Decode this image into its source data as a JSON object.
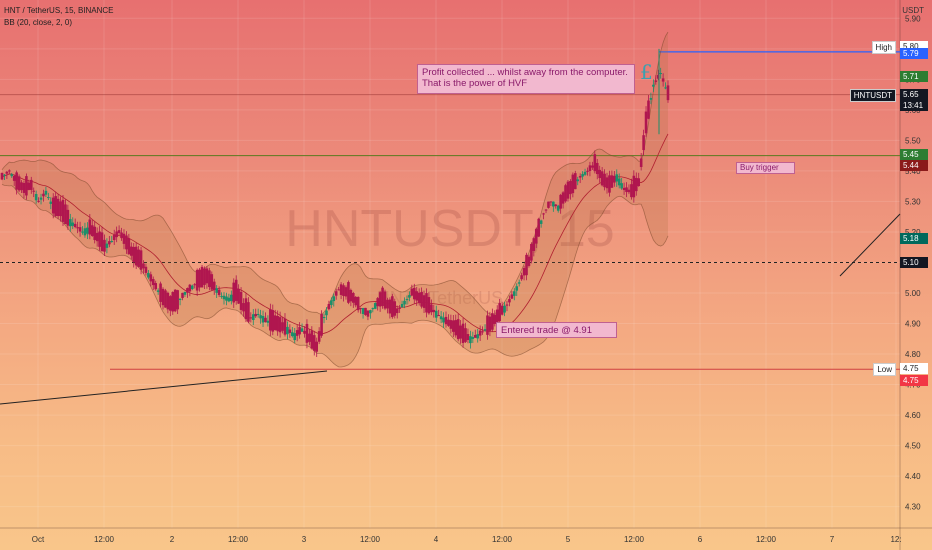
{
  "header": {
    "symbol_line": "HNT / TetherUS, 15, BINANCE",
    "indicator_line": "BB (20, close, 2, 0)",
    "currency": "USDT"
  },
  "watermark": {
    "ticker": "HNTUSDT, 15",
    "name": "HNT / TetherUS"
  },
  "y_axis": {
    "ticks": [
      "5.90",
      "5.80",
      "5.70",
      "5.60",
      "5.50",
      "5.40",
      "5.30",
      "5.20",
      "5.10",
      "5.00",
      "4.90",
      "4.80",
      "4.70",
      "4.60",
      "4.50",
      "4.40",
      "4.30"
    ],
    "min": 4.23,
    "max": 5.96
  },
  "x_axis": {
    "ticks": [
      "Oct",
      "12:00",
      "2",
      "12:00",
      "3",
      "12:00",
      "4",
      "12:00",
      "5",
      "12:00",
      "6",
      "12:00",
      "7",
      "12:"
    ]
  },
  "price_labels": [
    {
      "name": "high-label",
      "label": "High",
      "value": "5.80",
      "color": "#ffffff",
      "text": "#222222"
    },
    {
      "name": "blue-line-label",
      "label": "",
      "value": "5.79",
      "color": "#2962ff",
      "text": "#ffffff"
    },
    {
      "name": "bb-upper-label",
      "label": "",
      "value": "5.71",
      "color": "#2e7d32",
      "text": "#ffffff"
    },
    {
      "name": "last-price-label",
      "label": "HNTUSDT",
      "value": "5.65",
      "sub": "13:41",
      "color": "#131722",
      "text": "#ffffff"
    },
    {
      "name": "bb-basis-label",
      "label": "",
      "value": "5.45",
      "color": "#2e7d32",
      "text": "#ffffff"
    },
    {
      "name": "bb-mid-label",
      "label": "",
      "value": "5.44",
      "color": "#8b1a1a",
      "text": "#ffffff"
    },
    {
      "name": "bb-lower-label",
      "label": "",
      "value": "5.18",
      "color": "#00695c",
      "text": "#ffffff"
    },
    {
      "name": "dashed-line-label",
      "label": "",
      "value": "5.10",
      "color": "#131722",
      "text": "#ffffff"
    },
    {
      "name": "low-label",
      "label": "Low",
      "value": "4.75",
      "color": "#ffffff",
      "text": "#222222"
    },
    {
      "name": "red-level-label",
      "label": "",
      "value": "4.75",
      "color": "#f23645",
      "text": "#ffffff"
    }
  ],
  "annotations": {
    "profit_line1": "Profit collected ... whilst away from the computer.",
    "profit_line2": "That is the power of HVF",
    "buy_trigger": "Buy trigger",
    "entered_trade": "Entered trade @ 4.91",
    "pound_symbol": "£"
  },
  "chart_data": {
    "type": "candlestick",
    "title": "HNT / TetherUS, 15, BINANCE",
    "ylabel": "USDT",
    "ylim": [
      4.23,
      5.96
    ],
    "levels": {
      "high": 5.8,
      "blue_line": 5.79,
      "upper": 5.71,
      "last": 5.65,
      "buy_trigger": 5.45,
      "lower_band": 5.18,
      "dashed": 5.1,
      "low": 4.75
    },
    "close_path": [
      5.38,
      5.4,
      5.36,
      5.34,
      5.35,
      5.3,
      5.33,
      5.28,
      5.27,
      5.24,
      5.22,
      5.2,
      5.21,
      5.18,
      5.15,
      5.17,
      5.2,
      5.16,
      5.12,
      5.1,
      5.06,
      5.02,
      4.98,
      4.96,
      4.97,
      5.0,
      5.02,
      5.04,
      5.05,
      5.02,
      4.99,
      4.98,
      5.0,
      4.95,
      4.92,
      4.93,
      4.91,
      4.9,
      4.89,
      4.88,
      4.86,
      4.88,
      4.85,
      4.82,
      4.92,
      4.97,
      5.01,
      5.0,
      4.98,
      4.95,
      4.93,
      4.96,
      4.98,
      4.95,
      4.94,
      4.97,
      5.0,
      4.98,
      4.96,
      4.94,
      4.92,
      4.9,
      4.88,
      4.86,
      4.85,
      4.86,
      4.88,
      4.9,
      4.93,
      4.96,
      5.0,
      5.05,
      5.1,
      5.18,
      5.26,
      5.3,
      5.28,
      5.32,
      5.35,
      5.38,
      5.4,
      5.42,
      5.37,
      5.35,
      5.38,
      5.34,
      5.33,
      5.36,
      5.55,
      5.68,
      5.72,
      5.65
    ]
  }
}
